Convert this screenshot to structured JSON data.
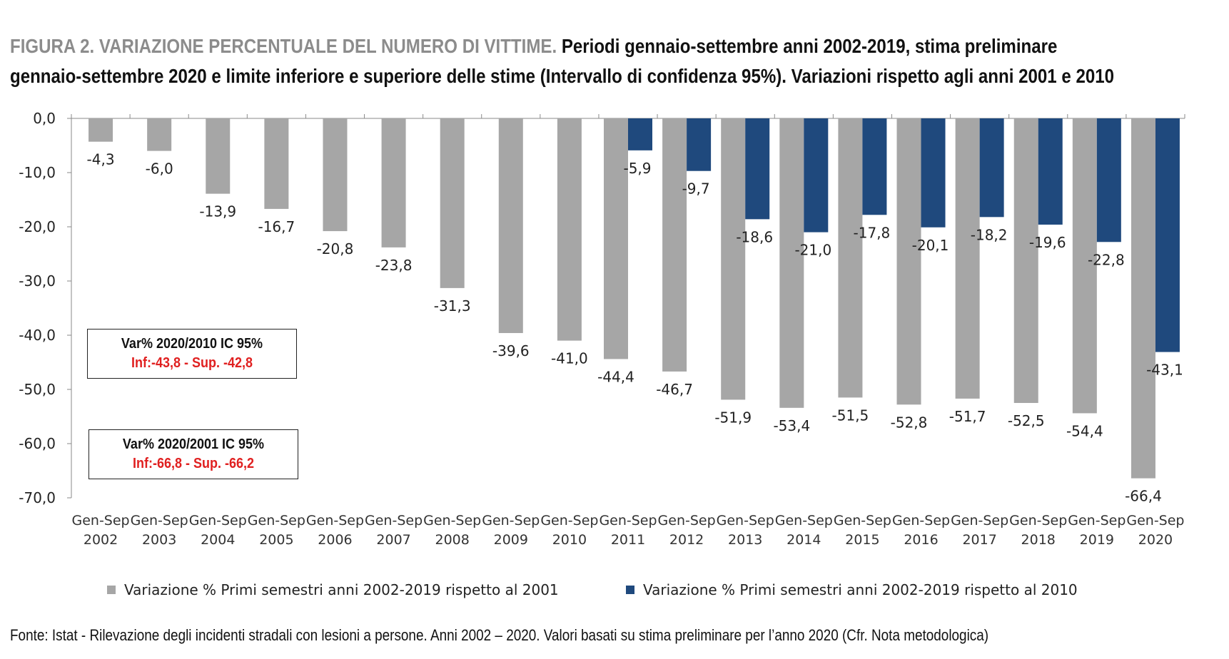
{
  "title": {
    "bold": "FIGURA 2. VARIAZIONE PERCENTUALE DEL NUMERO DI VITTIME.",
    "line1_rest": " Periodi gennaio-settembre anni 2002-2019, stima preliminare",
    "line2": "gennaio-settembre 2020 e limite inferiore e superiore delle stime (Intervallo di confidenza 95%). Variazioni rispetto agli anni 2001 e 2010"
  },
  "boxes": [
    {
      "line1": "Var% 2020/2010  IC 95%",
      "line2": "Inf:-43,8   - Sup. -42,8"
    },
    {
      "line1": "Var% 2020/2001  IC 95%",
      "line2": "Inf:-66,8   - Sup. -66,2"
    }
  ],
  "source": "Fonte: Istat - Rilevazione degli incidenti stradali con lesioni a persone. Anni 2002 – 2020. Valori basati su stima preliminare per l’anno 2020 (Cfr. Nota metodologica)",
  "chart_data": {
    "type": "bar",
    "categories": [
      {
        "line1": "Gen-Sep",
        "line2": "2002"
      },
      {
        "line1": "Gen-Sep",
        "line2": "2003"
      },
      {
        "line1": "Gen-Sep",
        "line2": "2004"
      },
      {
        "line1": "Gen-Sep",
        "line2": "2005"
      },
      {
        "line1": "Gen-Sep",
        "line2": "2006"
      },
      {
        "line1": "Gen-Sep",
        "line2": "2007"
      },
      {
        "line1": "Gen-Sep",
        "line2": "2008"
      },
      {
        "line1": "Gen-Sep",
        "line2": "2009"
      },
      {
        "line1": "Gen-Sep",
        "line2": "2010"
      },
      {
        "line1": "Gen-Sep",
        "line2": "2011"
      },
      {
        "line1": "Gen-Sep",
        "line2": "2012"
      },
      {
        "line1": "Gen-Sep",
        "line2": "2013"
      },
      {
        "line1": "Gen-Sep",
        "line2": "2014"
      },
      {
        "line1": "Gen-Sep",
        "line2": "2015"
      },
      {
        "line1": "Gen-Sep",
        "line2": "2016"
      },
      {
        "line1": "Gen-Sep",
        "line2": "2017"
      },
      {
        "line1": "Gen-Sep",
        "line2": "2018"
      },
      {
        "line1": "Gen-Sep",
        "line2": "2019"
      },
      {
        "line1": "Gen-Sep",
        "line2": "2020"
      }
    ],
    "series": [
      {
        "name": "Variazione % Primi semestri anni 2002-2019 rispetto al 2001",
        "color": "#a6a6a6",
        "values": [
          -4.3,
          -6.0,
          -13.9,
          -16.7,
          -20.8,
          -23.8,
          -31.3,
          -39.6,
          -41.0,
          -44.4,
          -46.7,
          -51.9,
          -53.4,
          -51.5,
          -52.8,
          -51.7,
          -52.5,
          -54.4,
          -66.4
        ],
        "labels": [
          "-4,3",
          "-6,0",
          "-13,9",
          "-16,7",
          "-20,8",
          "-23,8",
          "-31,3",
          "-39,6",
          "-41,0",
          "-44,4",
          "-46,7",
          "-51,9",
          "-53,4",
          "-51,5",
          "-52,8",
          "-51,7",
          "-52,5",
          "-54,4",
          "-66,4"
        ]
      },
      {
        "name": "Variazione % Primi semestri anni 2002-2019 rispetto al 2010",
        "color": "#1f497d",
        "values": [
          null,
          null,
          null,
          null,
          null,
          null,
          null,
          null,
          null,
          -5.9,
          -9.7,
          -18.6,
          -21.0,
          -17.8,
          -20.1,
          -18.2,
          -19.6,
          -22.8,
          -43.1
        ],
        "labels": [
          null,
          null,
          null,
          null,
          null,
          null,
          null,
          null,
          null,
          "-5,9",
          "-9,7",
          "-18,6",
          "-21,0",
          "-17,8",
          "-20,1",
          "-18,2",
          "-19,6",
          "-22,8",
          "-43,1"
        ]
      }
    ],
    "yticks": [
      "0,0",
      "-10,0",
      "-20,0",
      "-30,0",
      "-40,0",
      "-50,0",
      "-60,0",
      "-70,0"
    ],
    "ylim": [
      -70,
      0
    ],
    "legend_position": "bottom",
    "grid": false
  }
}
